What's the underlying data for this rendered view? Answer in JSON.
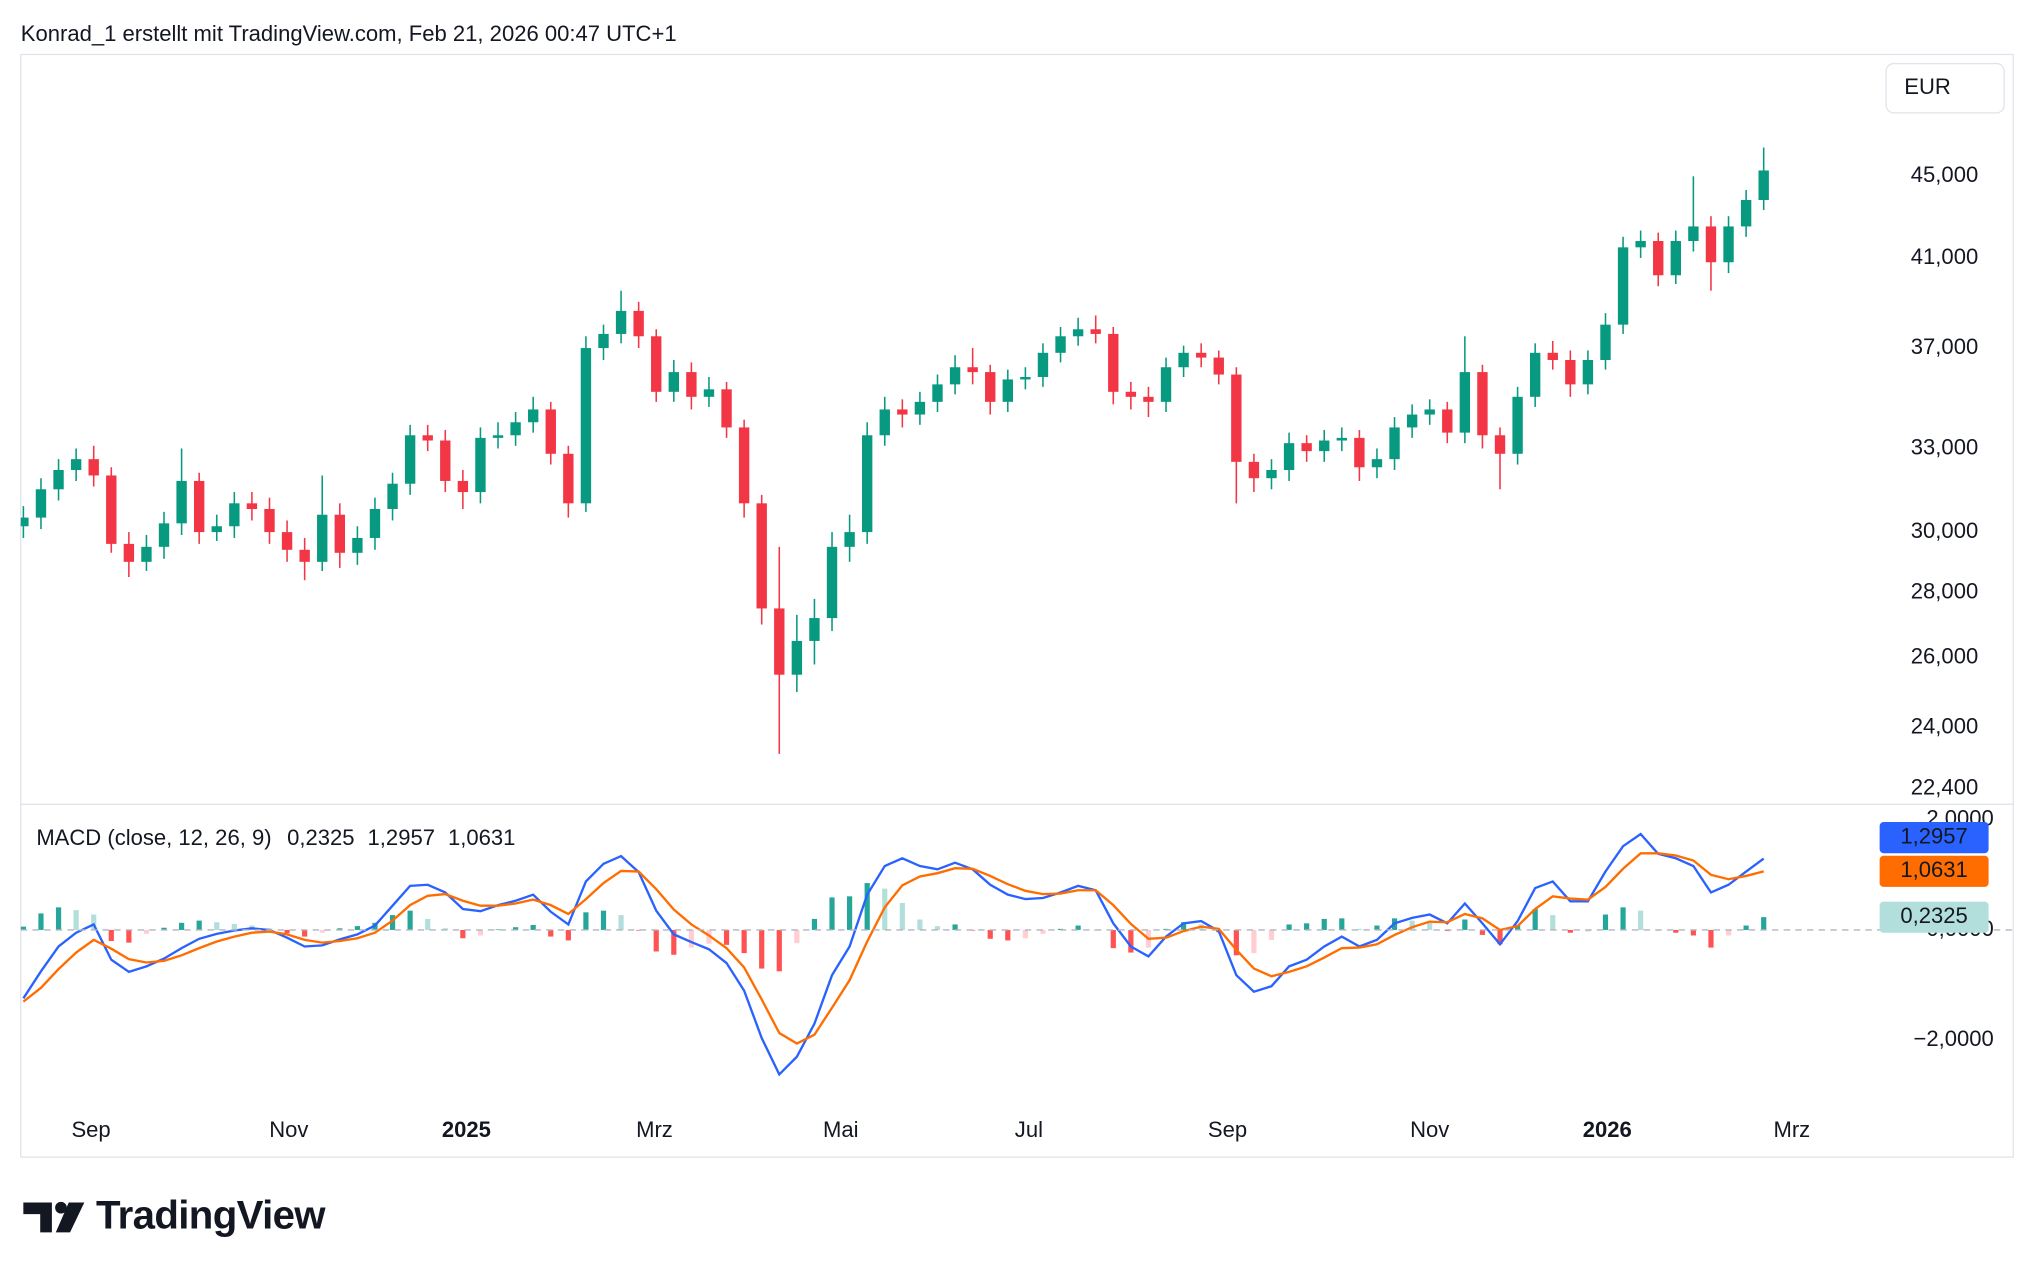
{
  "header": "Konrad_1 erstellt mit TradingView.com, Feb 21, 2026 00:47 UTC+1",
  "logo": "TradingView",
  "chart_data": [
    {
      "type": "candlestick",
      "currency": "EUR",
      "log_scale": true,
      "grid": false,
      "colors": {
        "up": "#089981",
        "down": "#f23645"
      },
      "xlim": [
        -0.15,
        105.3
      ],
      "xticks": [
        {
          "value": 3.85,
          "label": "Sep"
        },
        {
          "value": 15.1,
          "label": "Nov"
        },
        {
          "value": 25.2,
          "label": "2025"
        },
        {
          "value": 35.9,
          "label": "Mrz"
        },
        {
          "value": 46.5,
          "label": "Mai"
        },
        {
          "value": 57.2,
          "label": "Jul"
        },
        {
          "value": 68.5,
          "label": "Sep"
        },
        {
          "value": 80.0,
          "label": "Nov"
        },
        {
          "value": 90.1,
          "label": "2026"
        },
        {
          "value": 100.6,
          "label": "Mrz"
        }
      ],
      "ylim": [
        22000,
        51700
      ],
      "yticks": [
        {
          "value": 22400,
          "label": "22,400"
        },
        {
          "value": 24000,
          "label": "24,000"
        },
        {
          "value": 26000,
          "label": "26,000"
        },
        {
          "value": 28000,
          "label": "28,000"
        },
        {
          "value": 30000,
          "label": "30,000"
        },
        {
          "value": 33000,
          "label": "33,000"
        },
        {
          "value": 37000,
          "label": "37,000"
        },
        {
          "value": 41000,
          "label": "41,000"
        },
        {
          "value": 45000,
          "label": "45,000"
        }
      ],
      "open": [
        30200,
        30500,
        31500,
        32200,
        32600,
        32000,
        29600,
        29000,
        29500,
        30300,
        31800,
        30000,
        30200,
        31000,
        30800,
        30000,
        29400,
        29000,
        30600,
        29300,
        29800,
        30800,
        31700,
        33500,
        33300,
        31800,
        31400,
        33400,
        33500,
        34000,
        34500,
        32800,
        31000,
        37000,
        37600,
        38600,
        37500,
        35200,
        36000,
        35000,
        35300,
        33800,
        31000,
        27500,
        25500,
        26500,
        27200,
        29500,
        30000,
        33500,
        34500,
        34300,
        34800,
        35500,
        36200,
        36000,
        34800,
        35700,
        35800,
        36800,
        37500,
        37800,
        37600,
        35200,
        35000,
        34800,
        36200,
        36800,
        36600,
        35900,
        32500,
        31900,
        32200,
        33200,
        32900,
        33300,
        33400,
        32300,
        32600,
        33800,
        34300,
        34500,
        33600,
        36000,
        33500,
        32800,
        35000,
        36800,
        36500,
        35500,
        36500,
        38000,
        41500,
        41800,
        40200,
        41800,
        42500,
        40800,
        42500,
        43800
      ],
      "high": [
        30900,
        31900,
        32600,
        33000,
        33100,
        32300,
        30000,
        29900,
        30700,
        33000,
        32100,
        30600,
        31400,
        31400,
        31200,
        30400,
        29800,
        32000,
        31000,
        30200,
        31200,
        32100,
        33900,
        33900,
        33700,
        32200,
        33800,
        34000,
        34400,
        35000,
        34800,
        33100,
        37500,
        38000,
        39500,
        39000,
        37800,
        36500,
        36400,
        35800,
        35600,
        34100,
        31300,
        29500,
        27300,
        27800,
        30000,
        30600,
        34000,
        35000,
        34900,
        35200,
        35900,
        36700,
        37000,
        36300,
        36100,
        36200,
        37200,
        37900,
        38300,
        38400,
        37900,
        35600,
        35400,
        36600,
        37100,
        37200,
        36900,
        36200,
        32800,
        32600,
        33600,
        33500,
        33700,
        33800,
        33700,
        33000,
        34200,
        34700,
        34900,
        34800,
        37500,
        36300,
        33800,
        35400,
        37200,
        37300,
        36900,
        36900,
        38500,
        42000,
        42300,
        42200,
        42300,
        45000,
        43000,
        43000,
        44300,
        46500
      ],
      "low": [
        29800,
        30100,
        31100,
        31800,
        31600,
        29300,
        28500,
        28700,
        29100,
        29900,
        29600,
        29700,
        29800,
        30400,
        29600,
        29000,
        28400,
        28700,
        28800,
        28900,
        29400,
        30400,
        31300,
        32900,
        31400,
        30800,
        31000,
        33000,
        33100,
        33600,
        32400,
        30500,
        30700,
        36500,
        37200,
        37000,
        34800,
        34800,
        34500,
        34600,
        33400,
        30500,
        27000,
        23300,
        25000,
        25800,
        26800,
        29000,
        29600,
        33100,
        33800,
        33900,
        34400,
        35100,
        35500,
        34300,
        34400,
        35300,
        35400,
        36400,
        37100,
        37200,
        34700,
        34500,
        34200,
        34400,
        35800,
        36200,
        35500,
        31000,
        31400,
        31500,
        31800,
        32500,
        32500,
        32900,
        31800,
        31900,
        32200,
        33400,
        33900,
        33200,
        33200,
        33000,
        31500,
        32400,
        34600,
        36100,
        35000,
        35100,
        36100,
        37600,
        41000,
        39700,
        39800,
        41300,
        39500,
        40300,
        42000,
        43300
      ],
      "close": [
        30500,
        31500,
        32200,
        32600,
        32000,
        29600,
        29000,
        29500,
        30300,
        31800,
        30000,
        30200,
        31000,
        30800,
        30000,
        29400,
        29000,
        30600,
        29300,
        29800,
        30800,
        31700,
        33500,
        33300,
        31800,
        31400,
        33400,
        33500,
        34000,
        34500,
        32800,
        31000,
        37000,
        37600,
        38600,
        37500,
        35200,
        36000,
        35000,
        35300,
        33800,
        31000,
        27500,
        25500,
        26500,
        27200,
        29500,
        30000,
        33500,
        34500,
        34300,
        34800,
        35500,
        36200,
        36000,
        34800,
        35700,
        35800,
        36800,
        37500,
        37800,
        37600,
        35200,
        35000,
        34800,
        36200,
        36800,
        36600,
        35900,
        32500,
        31900,
        32200,
        33200,
        32900,
        33300,
        33400,
        32300,
        32600,
        33800,
        34300,
        34500,
        33600,
        36000,
        33500,
        32800,
        35000,
        36800,
        36500,
        35500,
        36500,
        38000,
        41500,
        41800,
        40200,
        41800,
        42500,
        40800,
        42500,
        43800,
        45300
      ]
    },
    {
      "type": "macd",
      "title": "MACD (close, 12, 26, 9)",
      "ylim": [
        -3.32,
        2.28
      ],
      "yticks": [
        {
          "value": 2,
          "label": "2,0000"
        },
        {
          "value": 0,
          "label": "0,0000"
        },
        {
          "value": -2,
          "label": "−2,0000"
        }
      ],
      "series": [
        {
          "kind": "histogram",
          "color": "#b2dfdb",
          "colors": {
            "grow_above": "#26a69a",
            "fall_above": "#b2dfdb",
            "grow_below": "#ffcdd2",
            "fall_below": "#ff5252"
          },
          "last_value_label": "0,2325",
          "values": [
            0.06,
            0.3,
            0.41,
            0.36,
            0.28,
            -0.2,
            -0.23,
            -0.07,
            0.04,
            0.13,
            0.17,
            0.14,
            0.11,
            0.08,
            0.03,
            -0.06,
            -0.12,
            -0.05,
            0.03,
            0.07,
            0.13,
            0.27,
            0.35,
            0.2,
            0.03,
            -0.15,
            -0.1,
            0.01,
            0.05,
            0.09,
            -0.12,
            -0.19,
            0.32,
            0.35,
            0.27,
            -0.01,
            -0.39,
            -0.45,
            -0.32,
            -0.25,
            -0.27,
            -0.42,
            -0.7,
            -0.75,
            -0.24,
            0.2,
            0.59,
            0.61,
            0.85,
            0.75,
            0.49,
            0.19,
            0.07,
            0.1,
            -0.01,
            -0.16,
            -0.19,
            -0.15,
            -0.07,
            0.02,
            0.08,
            0.0,
            -0.33,
            -0.41,
            -0.32,
            0.02,
            0.14,
            0.1,
            -0.04,
            -0.46,
            -0.42,
            -0.18,
            0.1,
            0.12,
            0.2,
            0.21,
            0.02,
            0.08,
            0.21,
            0.17,
            0.13,
            -0.02,
            0.19,
            -0.09,
            -0.26,
            0.09,
            0.38,
            0.27,
            -0.05,
            -0.03,
            0.28,
            0.41,
            0.35,
            -0.01,
            -0.05,
            -0.1,
            -0.32,
            -0.1,
            0.08,
            0.2325
          ]
        },
        {
          "kind": "line",
          "color": "#2962ff",
          "last_value_label": "1,2957",
          "values": [
            -1.24,
            -0.75,
            -0.3,
            -0.05,
            0.1,
            -0.54,
            -0.76,
            -0.66,
            -0.52,
            -0.33,
            -0.16,
            -0.07,
            -0.01,
            0.03,
            0.0,
            -0.14,
            -0.3,
            -0.28,
            -0.17,
            -0.08,
            0.08,
            0.44,
            0.8,
            0.82,
            0.68,
            0.38,
            0.34,
            0.45,
            0.53,
            0.64,
            0.33,
            0.1,
            0.88,
            1.2,
            1.34,
            1.05,
            0.35,
            -0.08,
            -0.22,
            -0.35,
            -0.6,
            -1.1,
            -1.96,
            -2.62,
            -2.3,
            -1.7,
            -0.82,
            -0.3,
            0.64,
            1.16,
            1.3,
            1.16,
            1.1,
            1.22,
            1.1,
            0.82,
            0.64,
            0.56,
            0.58,
            0.68,
            0.8,
            0.72,
            0.12,
            -0.3,
            -0.48,
            -0.12,
            0.12,
            0.16,
            -0.02,
            -0.82,
            -1.12,
            -1.02,
            -0.66,
            -0.54,
            -0.3,
            -0.12,
            -0.3,
            -0.18,
            0.12,
            0.22,
            0.28,
            0.12,
            0.48,
            0.12,
            -0.26,
            0.16,
            0.76,
            0.88,
            0.52,
            0.52,
            1.06,
            1.52,
            1.74,
            1.38,
            1.3,
            1.16,
            0.68,
            0.82,
            1.06,
            1.2957
          ]
        },
        {
          "kind": "line",
          "color": "#ff6d00",
          "last_value_label": "1,0631",
          "values": [
            -1.3,
            -1.05,
            -0.71,
            -0.41,
            -0.18,
            -0.34,
            -0.53,
            -0.59,
            -0.56,
            -0.46,
            -0.33,
            -0.21,
            -0.12,
            -0.05,
            -0.03,
            -0.08,
            -0.18,
            -0.23,
            -0.2,
            -0.15,
            -0.05,
            0.17,
            0.45,
            0.62,
            0.65,
            0.53,
            0.44,
            0.44,
            0.48,
            0.55,
            0.45,
            0.29,
            0.56,
            0.85,
            1.07,
            1.06,
            0.74,
            0.37,
            0.1,
            -0.1,
            -0.33,
            -0.68,
            -1.26,
            -1.87,
            -2.06,
            -1.9,
            -1.41,
            -0.91,
            -0.21,
            0.41,
            0.81,
            0.97,
            1.03,
            1.12,
            1.11,
            0.98,
            0.83,
            0.71,
            0.65,
            0.66,
            0.72,
            0.72,
            0.45,
            0.11,
            -0.16,
            -0.14,
            -0.02,
            0.06,
            0.02,
            -0.36,
            -0.7,
            -0.84,
            -0.76,
            -0.66,
            -0.5,
            -0.33,
            -0.32,
            -0.26,
            -0.09,
            0.05,
            0.15,
            0.14,
            0.29,
            0.21,
            0.0,
            0.07,
            0.38,
            0.61,
            0.57,
            0.55,
            0.78,
            1.11,
            1.39,
            1.39,
            1.35,
            1.26,
            1.0,
            0.92,
            0.98,
            1.0631
          ]
        }
      ]
    }
  ]
}
